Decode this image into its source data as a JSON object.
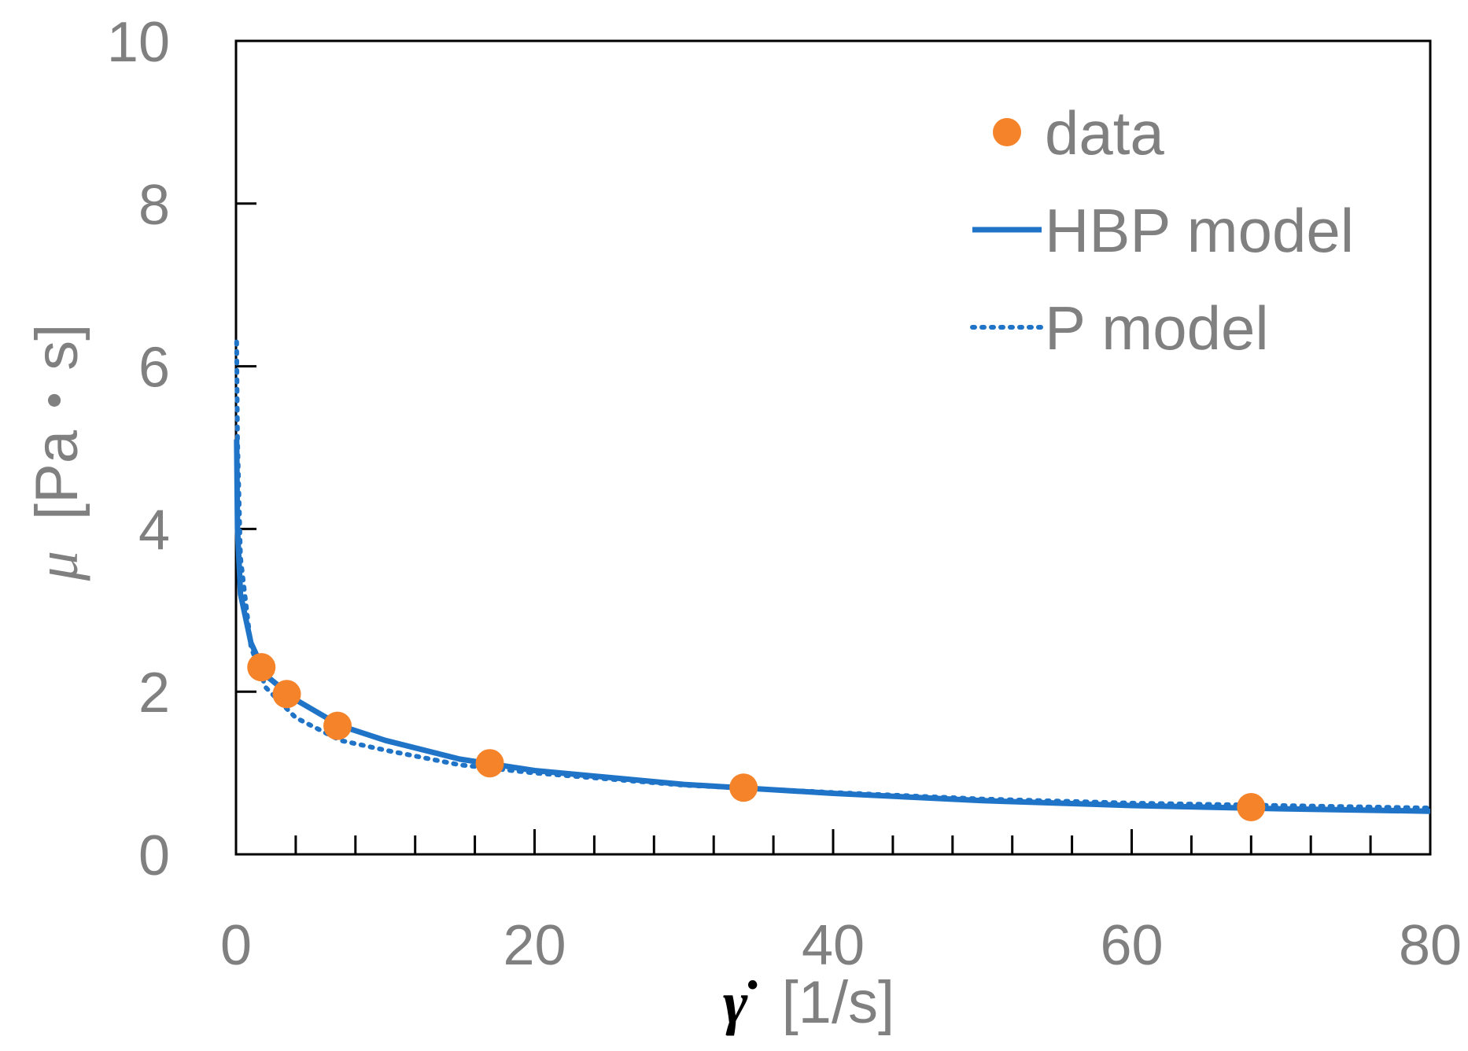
{
  "chart_data": {
    "type": "line",
    "xlabel_symbol": "γ̇",
    "xlabel_unit": "[1/s]",
    "ylabel_symbol": "μ",
    "ylabel_unit": "[Pa・s]",
    "xlim": [
      0,
      80
    ],
    "ylim": [
      0,
      10
    ],
    "xticks": [
      "0",
      "20",
      "40",
      "60",
      "80"
    ],
    "yticks": [
      "0",
      "2",
      "4",
      "6",
      "8",
      "10"
    ],
    "x_minor_step": 4,
    "y_major_step": 2,
    "grid": false,
    "legend_position": "top-right",
    "series": [
      {
        "name": "data",
        "style": "markers",
        "color": "#f5832a",
        "x": [
          1.7,
          3.4,
          6.8,
          17,
          34,
          68
        ],
        "y": [
          2.3,
          1.97,
          1.58,
          1.12,
          0.82,
          0.58
        ]
      },
      {
        "name": "HBP model",
        "style": "solid",
        "color": "#1f74c8",
        "x": [
          0.04,
          0.1,
          0.3,
          1,
          2,
          4,
          7,
          10,
          15,
          20,
          30,
          40,
          50,
          60,
          70,
          80
        ],
        "y": [
          5.1,
          4.0,
          3.2,
          2.6,
          2.2,
          1.9,
          1.58,
          1.4,
          1.17,
          1.03,
          0.86,
          0.75,
          0.66,
          0.6,
          0.56,
          0.53
        ]
      },
      {
        "name": "P model",
        "style": "dotted",
        "color": "#1f74c8",
        "x": [
          0.04,
          0.1,
          0.3,
          1,
          2,
          4,
          7,
          10,
          15,
          20,
          30,
          40,
          50,
          60,
          70,
          80
        ],
        "y": [
          6.3,
          5.1,
          3.65,
          2.55,
          2.05,
          1.68,
          1.4,
          1.28,
          1.1,
          1.0,
          0.85,
          0.76,
          0.68,
          0.63,
          0.6,
          0.57
        ]
      }
    ]
  }
}
